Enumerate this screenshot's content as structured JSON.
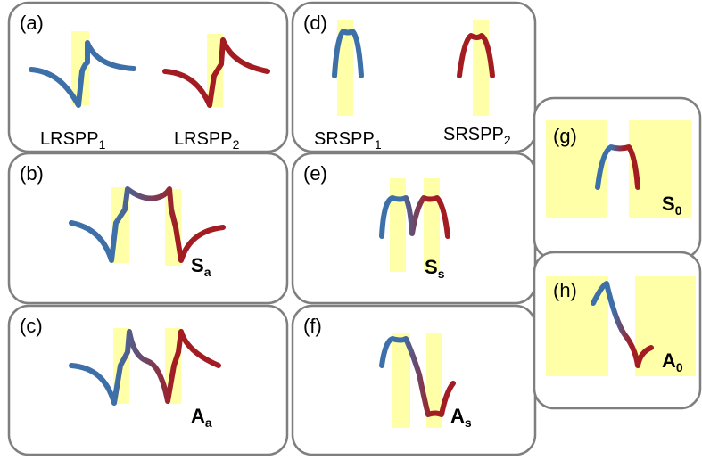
{
  "panels": [
    {
      "label": "(a)",
      "captions": [
        {
          "main": "LRSPP",
          "sub": "1"
        },
        {
          "main": "LRSPP",
          "sub": "2"
        }
      ]
    },
    {
      "label": "(b)",
      "captions": [
        {
          "main": "S",
          "sub": "a"
        }
      ]
    },
    {
      "label": "(c)",
      "captions": [
        {
          "main": "A",
          "sub": "a"
        }
      ]
    },
    {
      "label": "(d)",
      "captions": [
        {
          "main": "SRSPP",
          "sub": "1"
        },
        {
          "main": "SRSPP",
          "sub": "2"
        }
      ]
    },
    {
      "label": "(e)",
      "captions": [
        {
          "main": "S",
          "sub": "s"
        }
      ]
    },
    {
      "label": "(f)",
      "captions": [
        {
          "main": "A",
          "sub": "s"
        }
      ]
    },
    {
      "label": "(g)",
      "captions": [
        {
          "main": "S",
          "sub": "0"
        }
      ]
    },
    {
      "label": "(h)",
      "captions": [
        {
          "main": "A",
          "sub": "0"
        }
      ]
    }
  ]
}
